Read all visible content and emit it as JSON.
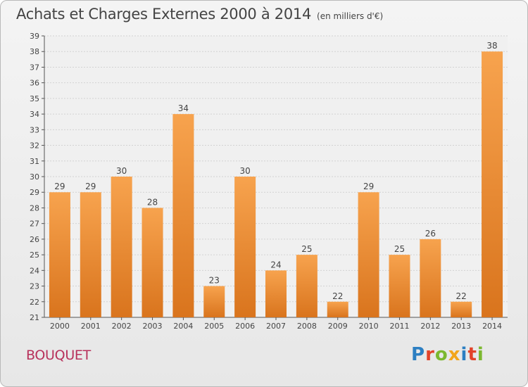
{
  "header": {
    "title": "Achats et Charges Externes 2000 à 2014",
    "unit": "(en milliers d'€)"
  },
  "footer": {
    "commune": "BOUQUET",
    "logo": "Proxiti"
  },
  "colors": {
    "bar_light": "#f7a34e",
    "bar_dark": "#d9741d",
    "commune": "#b8315b",
    "logo_letters": [
      "#2d7fc2",
      "#e2432a",
      "#7cb82f",
      "#f2a51c",
      "#2d7fc2",
      "#e2432a",
      "#7cb82f"
    ]
  },
  "chart_data": {
    "type": "bar",
    "title": "Achats et Charges Externes 2000 à 2014",
    "subtitle": "(en milliers d'€)",
    "xlabel": "",
    "ylabel": "",
    "categories": [
      "2000",
      "2001",
      "2002",
      "2003",
      "2004",
      "2005",
      "2006",
      "2007",
      "2008",
      "2009",
      "2010",
      "2011",
      "2012",
      "2013",
      "2014"
    ],
    "values": [
      29,
      29,
      30,
      28,
      34,
      23,
      30,
      24,
      25,
      22,
      29,
      25,
      26,
      22,
      38
    ],
    "ylim": [
      21,
      39
    ],
    "yticks": [
      21,
      22,
      23,
      24,
      25,
      26,
      27,
      28,
      29,
      30,
      31,
      32,
      33,
      34,
      35,
      36,
      37,
      38,
      39
    ],
    "grid": true,
    "data_labels": true
  }
}
